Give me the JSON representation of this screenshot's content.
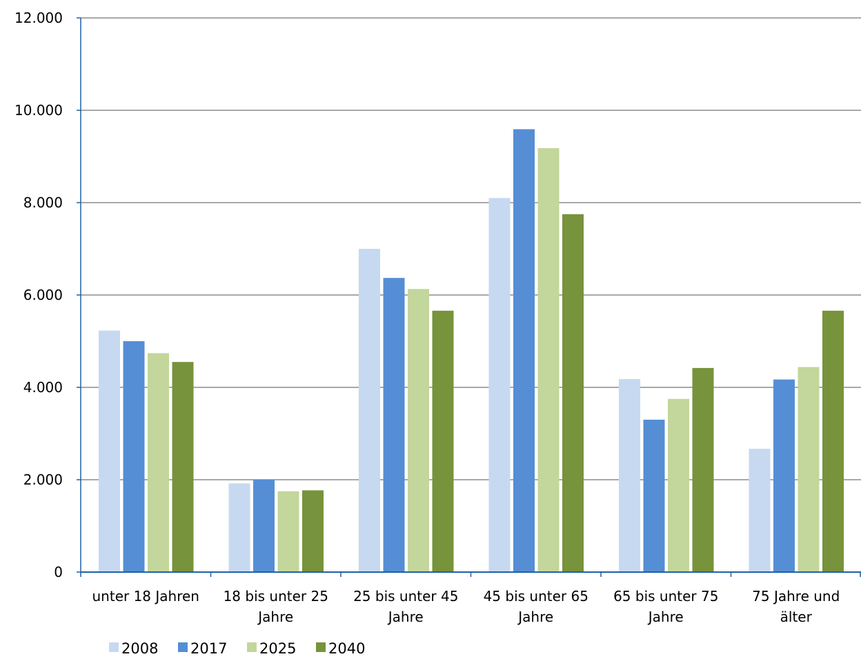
{
  "chart_data": {
    "type": "bar",
    "categories": [
      [
        "unter 18 Jahren"
      ],
      [
        "18 bis unter 25",
        "Jahre"
      ],
      [
        "25 bis unter 45",
        "Jahre"
      ],
      [
        "45 bis unter 65",
        "Jahre"
      ],
      [
        "65 bis unter 75",
        "Jahre"
      ],
      [
        "75 Jahre und",
        "älter"
      ]
    ],
    "series": [
      {
        "name": "2008",
        "color": "#c6d9f1",
        "values": [
          5230,
          1920,
          7000,
          8100,
          4180,
          2670
        ]
      },
      {
        "name": "2017",
        "color": "#558ed5",
        "values": [
          5000,
          2000,
          6370,
          9590,
          3300,
          4170
        ]
      },
      {
        "name": "2025",
        "color": "#c3d69b",
        "values": [
          4740,
          1750,
          6130,
          9180,
          3750,
          4440
        ]
      },
      {
        "name": "2040",
        "color": "#77933c",
        "values": [
          4550,
          1770,
          5660,
          7750,
          4420,
          5660
        ]
      }
    ],
    "ylim": [
      0,
      12000
    ],
    "yticks": [
      0,
      2000,
      4000,
      6000,
      8000,
      10000,
      12000
    ],
    "ytick_labels": [
      "0",
      "2.000",
      "4.000",
      "6.000",
      "8.000",
      "10.000",
      "12.000"
    ],
    "grid": true,
    "legend": "bottom-left",
    "axis_color": "#1f5fa6",
    "grid_color": "#8c8c8c"
  }
}
